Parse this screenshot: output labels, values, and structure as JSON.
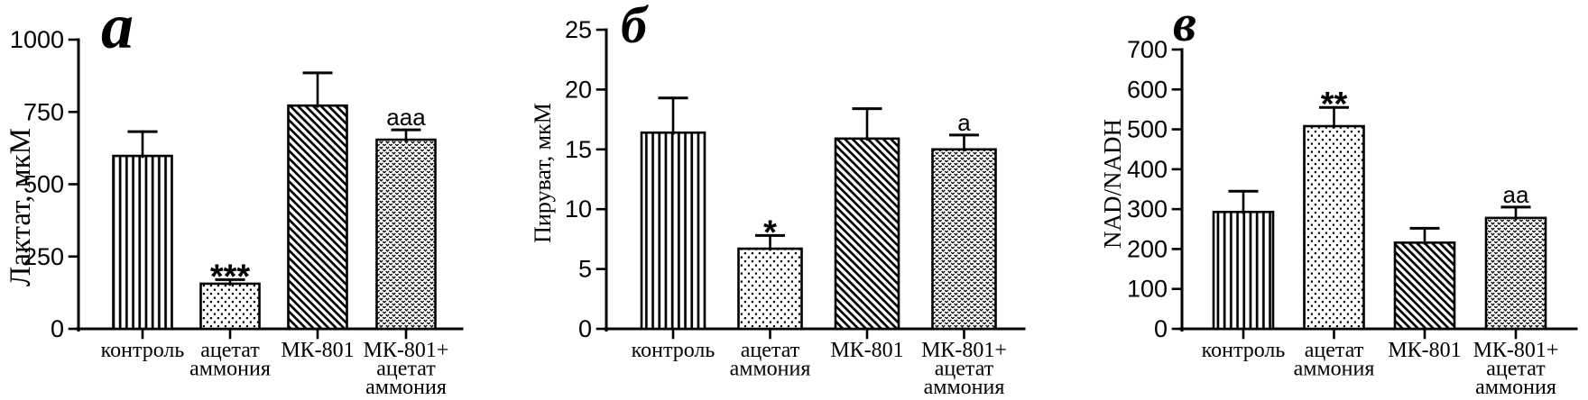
{
  "figure": {
    "background": "#ffffff",
    "ink_color": "#000000",
    "description_note": "Three-panel black-and-white bar figure with hatched bars and upper error bars"
  },
  "chart_data": [
    {
      "type": "bar",
      "panel_letter": "а",
      "ylabel": "Лактат, мкМ",
      "ylim": [
        0,
        1000
      ],
      "yticks": [
        0,
        250,
        500,
        750,
        1000
      ],
      "grid": false,
      "legend": "none",
      "categories": [
        [
          "контроль"
        ],
        [
          "ацетат",
          "аммония"
        ],
        [
          "МК-801"
        ],
        [
          "МК-801+",
          "ацетат",
          "аммония"
        ]
      ],
      "values": [
        598,
        156,
        772,
        654
      ],
      "errors_plus": [
        84,
        14,
        113,
        34
      ],
      "significance": [
        "",
        "***",
        "",
        "ааа"
      ],
      "bar_patterns": [
        "vertical-stripes",
        "dots",
        "diagonal-stripes",
        "scales"
      ]
    },
    {
      "type": "bar",
      "panel_letter": "б",
      "ylabel": "Пируват, мкМ",
      "ylim": [
        0,
        25
      ],
      "yticks": [
        0,
        5,
        10,
        15,
        20,
        25
      ],
      "grid": false,
      "legend": "none",
      "categories": [
        [
          "контроль"
        ],
        [
          "ацетат",
          "аммония"
        ],
        [
          "МК-801"
        ],
        [
          "МК-801+",
          "ацетат",
          "аммония"
        ]
      ],
      "values": [
        16.4,
        6.7,
        15.9,
        15.0
      ],
      "errors_plus": [
        2.9,
        1.1,
        2.5,
        1.2
      ],
      "significance": [
        "",
        "*",
        "",
        "а"
      ],
      "bar_patterns": [
        "vertical-stripes",
        "dots",
        "diagonal-stripes",
        "scales"
      ]
    },
    {
      "type": "bar",
      "panel_letter": "в",
      "ylabel": "NAD/NADH",
      "ylim": [
        0,
        700
      ],
      "yticks": [
        0,
        100,
        200,
        300,
        400,
        500,
        600,
        700
      ],
      "grid": false,
      "legend": "none",
      "categories": [
        [
          "контроль"
        ],
        [
          "ацетат",
          "аммония"
        ],
        [
          "МК-801"
        ],
        [
          "МК-801+",
          "ацетат",
          "аммония"
        ]
      ],
      "values": [
        293,
        508,
        216,
        278
      ],
      "errors_plus": [
        52,
        47,
        36,
        27
      ],
      "significance": [
        "",
        "**",
        "",
        "аа"
      ],
      "bar_patterns": [
        "vertical-stripes",
        "dots",
        "diagonal-stripes",
        "scales"
      ]
    }
  ]
}
